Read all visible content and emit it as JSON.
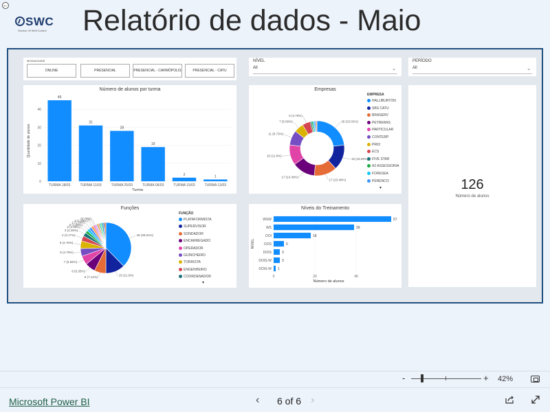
{
  "header": {
    "title": "Relatório de dados - Maio",
    "logo_text": "SWC",
    "logo_tagline": "Service Of Well Control"
  },
  "filters": {
    "modalidade_label": "MODALIDADE",
    "modalidade_options": [
      "ONLINE",
      "PRESENCIAL",
      "PRESENCIAL - CARMÓPOLIS",
      "PRESENCIAL - CATU"
    ],
    "nivel_label": "NÍVEL",
    "nivel_value": "All",
    "periodo_label": "PERÍODO",
    "periodo_value": "All"
  },
  "turma_chart": {
    "chart_data": {
      "type": "bar",
      "title": "Número de alunos por turma",
      "xlabel": "Turma",
      "ylabel": "Quantidade de alunos",
      "categories": [
        "TURMA 18/03",
        "TURMA 11/03",
        "TURMA 25/03",
        "TURMA 06/03",
        "TURMA 15/03",
        "TURMA 13/03"
      ],
      "values": [
        45,
        31,
        28,
        19,
        2,
        1
      ],
      "ylim": [
        0,
        45
      ],
      "yticks": [
        0,
        10,
        20,
        30,
        40
      ],
      "color": "#118dff"
    }
  },
  "empresas_chart": {
    "chart_data": {
      "type": "pie",
      "donut": true,
      "title": "Empresas",
      "legend_title": "EMPRESA",
      "legend_position": "right",
      "slices": [
        {
          "name": "HALLIBURTON",
          "value": 29,
          "label": "29 (23.02%)",
          "color": "#118dff"
        },
        {
          "name": "SBS CATU",
          "value": 19,
          "label": "19 (15.08%)",
          "color": "#12239e"
        },
        {
          "name": "BRASERV",
          "value": 17,
          "label": "17 (13.49%)",
          "color": "#e66c37"
        },
        {
          "name": "PETRERAS",
          "value": 17,
          "label": "17 (13.49%)",
          "color": "#6b007b"
        },
        {
          "name": "PARTICULAR",
          "value": 15,
          "label": "15 (11.9%)",
          "color": "#e044a7"
        },
        {
          "name": "CONTERP",
          "value": 11,
          "label": "11 (8.73%)",
          "color": "#744ec2"
        },
        {
          "name": "PRIO",
          "value": 7,
          "label": "7 (5.56%)",
          "color": "#d9b300"
        },
        {
          "name": "ECS",
          "value": 6,
          "label": "6 (4.76%)",
          "color": "#d64550"
        },
        {
          "name": "FIVE STAR",
          "value": 1,
          "label": "",
          "color": "#197278"
        },
        {
          "name": "A2 ASSESSORIA",
          "value": 1,
          "label": "",
          "color": "#1aab40"
        },
        {
          "name": "FORESEA",
          "value": 1,
          "label": "",
          "color": "#15c6f4"
        },
        {
          "name": "PERENCO",
          "value": 1,
          "label": "",
          "color": "#4092ff"
        },
        {
          "name": "",
          "value": 1,
          "label": "",
          "color": "#ffa058"
        }
      ],
      "extra_labels": [
        "6 (4.76%)"
      ]
    }
  },
  "kpi": {
    "value": "126",
    "label": "Número de alunos"
  },
  "funcoes_chart": {
    "chart_data": {
      "type": "pie",
      "title": "Funções",
      "legend_title": "FUNÇÃO",
      "legend_position": "right",
      "slices": [
        {
          "name": "PLATAFORMISTA",
          "value": 46,
          "label": "46 (36.51%)",
          "color": "#118dff"
        },
        {
          "name": "SUPERVISOR",
          "value": 15,
          "label": "15 (11.9%)",
          "color": "#12239e"
        },
        {
          "name": "SONDADOR",
          "value": 9,
          "label": "9 (7.14%)",
          "color": "#e66c37"
        },
        {
          "name": "ENCARREGADO",
          "value": 8,
          "label": "8 (6.35%)",
          "color": "#6b007b"
        },
        {
          "name": "OPERADOR",
          "value": 7,
          "label": "7 (5.56%)",
          "color": "#e044a7"
        },
        {
          "name": "GUINCHEIRO",
          "value": 6,
          "label": "6 (4.76%)",
          "color": "#744ec2"
        },
        {
          "name": "TORRISTA",
          "value": 6,
          "label": "6 (4.76%)",
          "color": "#d9b300"
        },
        {
          "name": "ENGENHEIRO",
          "value": 4,
          "label": "4 (3.17%)",
          "color": "#d64550"
        },
        {
          "name": "COORDENADOR",
          "value": 3,
          "label": "3 (2.38%)",
          "color": "#197278"
        },
        {
          "name": "",
          "value": 2,
          "label": "2 (1.59%)",
          "color": "#1aab40"
        },
        {
          "name": "",
          "value": 2,
          "label": "2 (1.59%)",
          "color": "#15c6f4"
        },
        {
          "name": "",
          "value": 2,
          "label": "2 (1.59%)",
          "color": "#4092ff"
        },
        {
          "name": "",
          "value": 2,
          "label": "2 (1.59%)",
          "color": "#ffa058"
        },
        {
          "name": "",
          "value": 1,
          "label": "1",
          "color": "#be5dc9"
        },
        {
          "name": "",
          "value": 1,
          "label": "(0.79%)",
          "color": "#f472d0"
        },
        {
          "name": "",
          "value": 1,
          "label": "",
          "color": "#b5a1ff"
        },
        {
          "name": "",
          "value": 1,
          "label": "",
          "color": "#c4a200"
        },
        {
          "name": "",
          "value": 1,
          "label": "",
          "color": "#ff8080"
        },
        {
          "name": "",
          "value": 1,
          "label": "",
          "color": "#00dbbc"
        },
        {
          "name": "",
          "value": 1,
          "label": "",
          "color": "#5bd667"
        },
        {
          "name": "",
          "value": 1,
          "label": "",
          "color": "#0091d5"
        },
        {
          "name": "",
          "value": 1,
          "label": "",
          "color": "#4668c5"
        },
        {
          "name": "",
          "value": 1,
          "label": "",
          "color": "#ff6300"
        }
      ]
    }
  },
  "niveis_chart": {
    "chart_data": {
      "type": "bar",
      "orientation": "horizontal",
      "title": "Níveis do Treinamento",
      "xlabel": "Número de alunos",
      "ylabel": "NÍVEL",
      "categories": [
        "WSW",
        "WS",
        "DOI",
        "DOS",
        "DOIS",
        "DOIS-W",
        "DOIS-W"
      ],
      "values": [
        57,
        39,
        18,
        5,
        3,
        3,
        1
      ],
      "xlim": [
        0,
        60
      ],
      "xticks": [
        0,
        20,
        40
      ],
      "color": "#118dff"
    }
  },
  "zoom": {
    "minus": "-",
    "plus": "+",
    "level": "42%"
  },
  "footer": {
    "brand_link": "Microsoft Power BI",
    "page_indicator": "6 of 6"
  }
}
